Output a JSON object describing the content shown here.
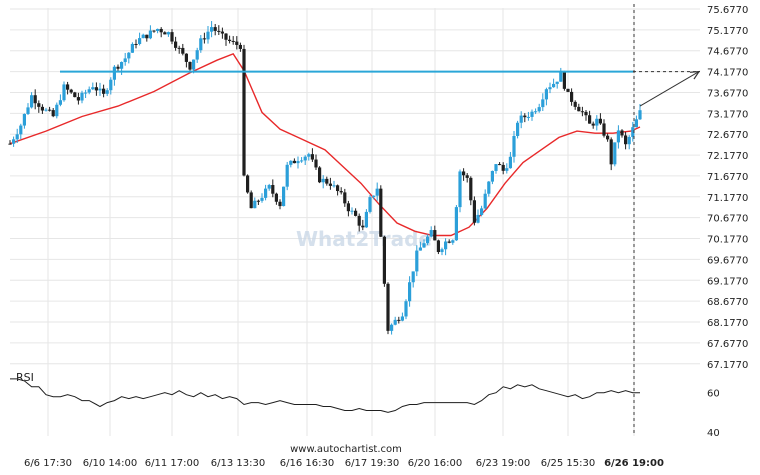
{
  "watermark": "What2Trade",
  "source": "www.autochartist.com",
  "colors": {
    "candle_up": "#2b9fd9",
    "candle_down": "#1f1f1f",
    "moving_average": "#e8292a",
    "resistance": "#2aa6d8",
    "projection_arrow": "#333333",
    "rsi_line": "#1f1f1f",
    "grid": "#e6e6e6"
  },
  "chart_data": {
    "type": "candlestick",
    "price_axis": {
      "ticks": [
        "75.6770",
        "75.1770",
        "74.6770",
        "74.1770",
        "73.6770",
        "73.1770",
        "72.6770",
        "72.1770",
        "71.6770",
        "71.1770",
        "70.6770",
        "70.1770",
        "69.6770",
        "69.1770",
        "68.6770",
        "68.1770",
        "67.6770",
        "67.1770"
      ],
      "ylim": [
        67.1,
        75.7
      ]
    },
    "time_axis": {
      "ticks": [
        "6/6 17:30",
        "6/10 14:00",
        "6/11 17:00",
        "6/13 13:30",
        "6/16 16:30",
        "6/17 19:30",
        "6/20 16:00",
        "6/23 19:00",
        "6/25 15:30",
        "6/26 19:00"
      ],
      "highlighted": "6/26 19:00"
    },
    "resistance_level": 74.177,
    "forecast_target": 74.177,
    "price_path": [
      [
        0,
        72.45
      ],
      [
        6,
        72.9
      ],
      [
        12,
        73.6
      ],
      [
        18,
        73.3
      ],
      [
        24,
        73.1
      ],
      [
        30,
        73.8
      ],
      [
        38,
        73.5
      ],
      [
        46,
        73.85
      ],
      [
        52,
        73.6
      ],
      [
        58,
        74.25
      ],
      [
        64,
        74.5
      ],
      [
        70,
        74.9
      ],
      [
        76,
        75.05
      ],
      [
        82,
        75.2
      ],
      [
        88,
        75.1
      ],
      [
        94,
        74.7
      ],
      [
        100,
        74.3
      ],
      [
        106,
        74.9
      ],
      [
        112,
        75.25
      ],
      [
        118,
        75.0
      ],
      [
        124,
        74.85
      ],
      [
        128,
        74.8
      ],
      [
        130,
        71.6
      ],
      [
        134,
        70.9
      ],
      [
        138,
        71.1
      ],
      [
        144,
        71.4
      ],
      [
        150,
        71.0
      ],
      [
        154,
        71.9
      ],
      [
        160,
        72.1
      ],
      [
        166,
        72.2
      ],
      [
        172,
        71.6
      ],
      [
        178,
        71.5
      ],
      [
        184,
        71.2
      ],
      [
        188,
        70.9
      ],
      [
        192,
        70.7
      ],
      [
        196,
        70.4
      ],
      [
        200,
        71.1
      ],
      [
        204,
        71.4
      ],
      [
        206,
        70.2
      ],
      [
        208,
        69.1
      ],
      [
        210,
        68.0
      ],
      [
        214,
        68.2
      ],
      [
        218,
        68.4
      ],
      [
        222,
        69.1
      ],
      [
        226,
        69.8
      ],
      [
        230,
        70.1
      ],
      [
        234,
        70.3
      ],
      [
        238,
        69.9
      ],
      [
        242,
        70.1
      ],
      [
        246,
        70.2
      ],
      [
        250,
        71.8
      ],
      [
        254,
        71.6
      ],
      [
        256,
        71.1
      ],
      [
        258,
        70.6
      ],
      [
        262,
        70.9
      ],
      [
        266,
        71.5
      ],
      [
        270,
        72.0
      ],
      [
        274,
        71.8
      ],
      [
        278,
        72.1
      ],
      [
        282,
        73.0
      ],
      [
        286,
        73.1
      ],
      [
        290,
        73.2
      ],
      [
        294,
        73.4
      ],
      [
        298,
        73.8
      ],
      [
        302,
        73.9
      ],
      [
        306,
        74.1
      ],
      [
        310,
        73.6
      ],
      [
        314,
        73.4
      ],
      [
        318,
        73.2
      ],
      [
        322,
        72.9
      ],
      [
        326,
        73.0
      ],
      [
        330,
        72.7
      ],
      [
        332,
        72.5
      ],
      [
        334,
        72.0
      ],
      [
        338,
        72.8
      ],
      [
        342,
        72.4
      ],
      [
        346,
        72.8
      ],
      [
        350,
        73.2
      ]
    ],
    "moving_average_path": [
      [
        0,
        72.45
      ],
      [
        20,
        72.75
      ],
      [
        40,
        73.1
      ],
      [
        60,
        73.35
      ],
      [
        80,
        73.7
      ],
      [
        100,
        74.15
      ],
      [
        115,
        74.45
      ],
      [
        124,
        74.6
      ],
      [
        130,
        74.2
      ],
      [
        140,
        73.2
      ],
      [
        150,
        72.8
      ],
      [
        160,
        72.6
      ],
      [
        175,
        72.3
      ],
      [
        185,
        71.9
      ],
      [
        195,
        71.5
      ],
      [
        205,
        71.0
      ],
      [
        215,
        70.55
      ],
      [
        225,
        70.35
      ],
      [
        235,
        70.25
      ],
      [
        245,
        70.25
      ],
      [
        255,
        70.45
      ],
      [
        265,
        70.9
      ],
      [
        275,
        71.5
      ],
      [
        285,
        72.0
      ],
      [
        295,
        72.3
      ],
      [
        305,
        72.6
      ],
      [
        315,
        72.75
      ],
      [
        325,
        72.7
      ],
      [
        335,
        72.7
      ],
      [
        345,
        72.75
      ],
      [
        350,
        72.85
      ]
    ],
    "projection": {
      "from_index": 350,
      "from_price": 73.35,
      "to_price": 74.177
    },
    "rsi": {
      "label": "RSI",
      "ticks": [
        "60",
        "40"
      ],
      "ylim": [
        35,
        70
      ],
      "values": [
        [
          0,
          67
        ],
        [
          4,
          67
        ],
        [
          8,
          66
        ],
        [
          12,
          63
        ],
        [
          16,
          63
        ],
        [
          20,
          59
        ],
        [
          24,
          58
        ],
        [
          28,
          58
        ],
        [
          32,
          59
        ],
        [
          36,
          58
        ],
        [
          40,
          56
        ],
        [
          44,
          56
        ],
        [
          48,
          54
        ],
        [
          50,
          53
        ],
        [
          54,
          55
        ],
        [
          58,
          56
        ],
        [
          62,
          58
        ],
        [
          66,
          57
        ],
        [
          70,
          58
        ],
        [
          74,
          57
        ],
        [
          78,
          58
        ],
        [
          82,
          59
        ],
        [
          86,
          60
        ],
        [
          90,
          59
        ],
        [
          94,
          61
        ],
        [
          98,
          59
        ],
        [
          102,
          58
        ],
        [
          106,
          60
        ],
        [
          110,
          58
        ],
        [
          114,
          59
        ],
        [
          118,
          57
        ],
        [
          122,
          58
        ],
        [
          126,
          57
        ],
        [
          130,
          54
        ],
        [
          134,
          55
        ],
        [
          138,
          55
        ],
        [
          142,
          54
        ],
        [
          146,
          55
        ],
        [
          150,
          56
        ],
        [
          154,
          55
        ],
        [
          158,
          54
        ],
        [
          162,
          54
        ],
        [
          166,
          54
        ],
        [
          170,
          54
        ],
        [
          174,
          53
        ],
        [
          178,
          53
        ],
        [
          182,
          52
        ],
        [
          186,
          51
        ],
        [
          190,
          51
        ],
        [
          194,
          52
        ],
        [
          198,
          51
        ],
        [
          202,
          51
        ],
        [
          206,
          51
        ],
        [
          210,
          50
        ],
        [
          214,
          51
        ],
        [
          218,
          53
        ],
        [
          222,
          54
        ],
        [
          226,
          54
        ],
        [
          230,
          55
        ],
        [
          234,
          55
        ],
        [
          238,
          55
        ],
        [
          242,
          55
        ],
        [
          246,
          55
        ],
        [
          250,
          55
        ],
        [
          254,
          55
        ],
        [
          258,
          54
        ],
        [
          262,
          56
        ],
        [
          266,
          59
        ],
        [
          270,
          60
        ],
        [
          274,
          63
        ],
        [
          278,
          62
        ],
        [
          282,
          64
        ],
        [
          286,
          63
        ],
        [
          290,
          64
        ],
        [
          294,
          62
        ],
        [
          298,
          61
        ],
        [
          302,
          60
        ],
        [
          306,
          59
        ],
        [
          310,
          58
        ],
        [
          314,
          59
        ],
        [
          318,
          57
        ],
        [
          322,
          58
        ],
        [
          326,
          60
        ],
        [
          330,
          60
        ],
        [
          334,
          61
        ],
        [
          338,
          60
        ],
        [
          342,
          61
        ],
        [
          346,
          60
        ],
        [
          350,
          60
        ]
      ]
    }
  }
}
